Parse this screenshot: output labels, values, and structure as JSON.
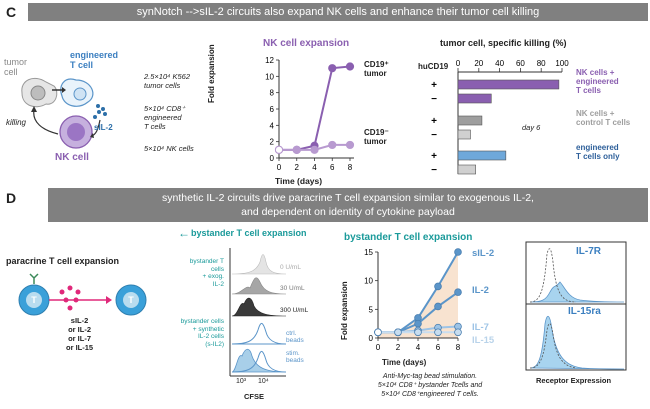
{
  "panelC": {
    "letter": "C",
    "banner": "synNotch -->sIL-2 circuits also expand NK cells and enhance their tumor cell killing",
    "schematic": {
      "tumor_label": "tumor\ncell",
      "engineered_label": "engineered\nT cell",
      "killing_label": "killing",
      "sil2_label": "sIL-2",
      "nk_label": "NK cell",
      "cond1": "2.5×10⁴ K562\ntumor cells",
      "cond2": "5×10⁴ CD8⁺\nengineered\nT cells",
      "cond3": "5×10⁴ NK cells"
    },
    "expansion_chart": {
      "title": "NK cell expansion",
      "ylabel": "Fold expansion",
      "xlabel": "Time (days)",
      "xticks": [
        "0",
        "2",
        "4",
        "6",
        "8"
      ],
      "yticks": [
        "0",
        "2",
        "4",
        "6",
        "8",
        "10",
        "12"
      ],
      "series_labels": [
        "CD19⁺\ntumor",
        "CD19⁻\ntumor"
      ]
    },
    "killing_chart": {
      "title": "tumor cell, specific killing (%)",
      "huCD19_label": "huCD19",
      "xticks": [
        "0",
        "20",
        "40",
        "60",
        "80",
        "100"
      ],
      "signs": [
        "+",
        "−",
        "+",
        "−",
        "+",
        "−"
      ],
      "day_label": "day 6",
      "group_labels": [
        "NK cells +\nengineered\nT cells",
        "NK cells +\ncontrol T cells",
        "engineered\nT cells only"
      ]
    }
  },
  "panelD": {
    "letter": "D",
    "banner_line1": "synthetic IL-2 circuits drive paracrine T cell expansion similar to exogenous IL-2,",
    "banner_line2": "and dependent on identity of cytokine payload",
    "paracrine": {
      "title": "paracrine T cell expansion",
      "cell_letter": "T",
      "cytokines": "sIL-2\nor IL-2\nor IL-7\nor IL-15"
    },
    "cfse": {
      "title": "bystander T cell expansion",
      "arrow": "←",
      "left_label1": "bystander T\ncells\n+ exog.\nIL-2",
      "left_label2": "bystander cells\n+ synthetic\nIL-2 cells\n(s-IL2)",
      "trace_labels": [
        "0 U/mL",
        "30 U/mL",
        "300 U/mL",
        "ctrl.\nbeads",
        "stim.\nbeads"
      ],
      "xticks": [
        "10³",
        "10⁴"
      ],
      "xlabel": "CFSE"
    },
    "bystander_chart": {
      "title": "bystander T cell expansion",
      "ylabel": "Fold expansion",
      "xlabel": "Time (days)",
      "xticks": [
        "0",
        "2",
        "4",
        "6",
        "8"
      ],
      "yticks": [
        "0",
        "5",
        "10",
        "15"
      ],
      "series_labels": [
        "sIL-2",
        "IL-2",
        "IL-7",
        "IL-15"
      ],
      "caption": "Anti-Myc-tag bead stimulation.\n5×10⁴ CD8⁺ bystander Tcells and\n5×10⁴ CD8⁺engineered T cells."
    },
    "receptor": {
      "labels": [
        "IL-7R",
        "IL-15ra"
      ],
      "xlabel": "Receptor Expression"
    }
  },
  "chart_data": [
    {
      "type": "line",
      "title": "NK cell expansion",
      "xlabel": "Time (days)",
      "ylabel": "Fold expansion",
      "x": [
        0,
        2,
        4,
        6,
        8
      ],
      "ylim": [
        0,
        12
      ],
      "series": [
        {
          "name": "CD19⁺\ntumor",
          "values": [
            1,
            1,
            1.5,
            11,
            11.2
          ]
        },
        {
          "name": "CD19⁻\ntumor",
          "values": [
            1,
            1,
            1,
            1.6,
            1.6
          ]
        }
      ],
      "colors": [
        "#8a5fb0",
        "#b89ad0"
      ]
    },
    {
      "type": "bar",
      "title": "tumor cell, specific killing (%)",
      "xlim": [
        0,
        100
      ],
      "categories": [
        "NK + engineered T (+)",
        "NK + engineered T (−)",
        "NK + control T (+)",
        "NK + control T (−)",
        "engineered T only (+)",
        "engineered T only (−)"
      ],
      "values": [
        97,
        32,
        23,
        12,
        46,
        17
      ],
      "colors": [
        "#8a5fb0",
        "#8a5fb0",
        "#9e9e9e",
        "#d0d0d0",
        "#6ea8da",
        "#d0d0d0"
      ]
    },
    {
      "type": "line",
      "title": "bystander T cell expansion",
      "xlabel": "Time (days)",
      "ylabel": "Fold expansion",
      "x": [
        0,
        2,
        4,
        6,
        8
      ],
      "ylim": [
        0,
        15
      ],
      "series": [
        {
          "name": "sIL-2",
          "values": [
            1,
            1,
            3.5,
            9,
            15
          ]
        },
        {
          "name": "IL-2",
          "values": [
            1,
            1,
            2.5,
            5.5,
            8
          ]
        },
        {
          "name": "IL-7",
          "values": [
            1,
            1,
            1.3,
            1.8,
            2
          ]
        },
        {
          "name": "IL-15",
          "values": [
            1,
            1,
            1,
            1,
            1
          ]
        }
      ],
      "colors": [
        "#5b95c9",
        "#5b95c9",
        "#9ec4e6",
        "#c8ddef"
      ]
    }
  ]
}
